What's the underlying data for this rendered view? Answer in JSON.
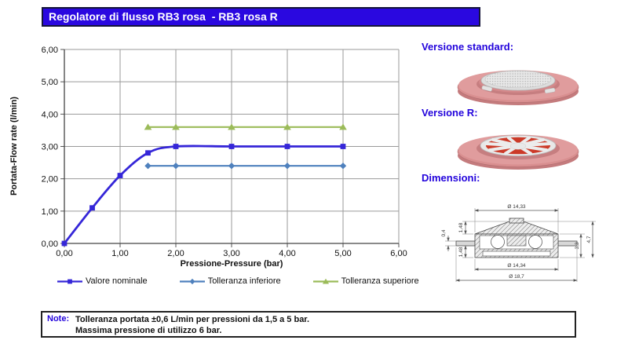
{
  "title_bar": {
    "text": "Regolatore di flusso RB3 rosa  - RB3 rosa R"
  },
  "chart_data": {
    "type": "line",
    "title": "",
    "xlabel": "Pressione-Pressure (bar)",
    "ylabel": "Portata-Flow rate (l/min)",
    "xlim": [
      0,
      6
    ],
    "ylim": [
      0,
      6
    ],
    "grid": true,
    "legend_position": "bottom",
    "xtick_labels": [
      "0,00",
      "1,00",
      "2,00",
      "3,00",
      "4,00",
      "5,00",
      "6,00"
    ],
    "ytick_labels": [
      "0,00",
      "1,00",
      "2,00",
      "3,00",
      "4,00",
      "5,00",
      "6,00"
    ],
    "series": [
      {
        "name": "Valore nominale",
        "color": "#3526d8",
        "marker": "square",
        "smooth": true,
        "width": 2.8,
        "points": [
          [
            0,
            0
          ],
          [
            0.5,
            1.1
          ],
          [
            1,
            2.1
          ],
          [
            1.5,
            2.8
          ],
          [
            2,
            3
          ],
          [
            3,
            3
          ],
          [
            4,
            3
          ],
          [
            5,
            3
          ]
        ]
      },
      {
        "name": "Tolleranza inferiore",
        "color": "#4f81bd",
        "marker": "diamond",
        "smooth": false,
        "width": 2.2,
        "points": [
          [
            1.5,
            2.4
          ],
          [
            2,
            2.4
          ],
          [
            3,
            2.4
          ],
          [
            4,
            2.4
          ],
          [
            5,
            2.4
          ]
        ]
      },
      {
        "name": "Tolleranza superiore",
        "color": "#9bbb59",
        "marker": "triangle",
        "smooth": false,
        "width": 2.2,
        "points": [
          [
            1.5,
            3.6
          ],
          [
            2,
            3.6
          ],
          [
            3,
            3.6
          ],
          [
            4,
            3.6
          ],
          [
            5,
            3.6
          ]
        ]
      }
    ]
  },
  "right_panel": {
    "standard_heading": "Versione standard:",
    "r_heading": "Versione R:",
    "dimensions_heading": "Dimensioni:",
    "drawing_dims": {
      "top_diameter": "Ø 14,33",
      "upper_left": "1,48",
      "left_lip": "0,4",
      "lower_left": "1,48",
      "inner_height": "3,3",
      "outer_height": "4,7",
      "mid_diameter": "Ø 14,34",
      "outer_diameter": "Ø 18,7"
    }
  },
  "note": {
    "label": "Note:",
    "line1": "Tolleranza portata ±0,6 L/min per pressioni da 1,5 a 5 bar.",
    "line2": "Massima pressione di utilizzo 6 bar."
  },
  "colors": {
    "accent_blue": "#2a08e0",
    "nominal_line": "#3526d8",
    "lower_tolerance_line": "#4f81bd",
    "upper_tolerance_line": "#9bbb59",
    "rosa_body": "#d98f90"
  }
}
